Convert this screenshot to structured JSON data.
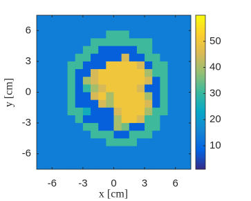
{
  "chart_data": {
    "type": "heatmap",
    "xlabel": "x [cm]",
    "ylabel": "y [cm]",
    "xlim": [
      -7.5,
      7.5
    ],
    "ylim": [
      -7.5,
      7.5
    ],
    "xticks": [
      -6,
      -3,
      0,
      3,
      6
    ],
    "yticks": [
      -6,
      -3,
      0,
      3,
      6
    ],
    "colormap": "parula",
    "clim": [
      1,
      60
    ],
    "colorbar_ticks": [
      10,
      20,
      30,
      40,
      50
    ],
    "z": [
      [
        14,
        14,
        14,
        14,
        14,
        14,
        14,
        14,
        14,
        14,
        14,
        14,
        14,
        14,
        14,
        14,
        14,
        14,
        14,
        14
      ],
      [
        14,
        14,
        14,
        14,
        14,
        14,
        14,
        14,
        14,
        14,
        14,
        14,
        14,
        14,
        14,
        14,
        14,
        14,
        14,
        14
      ],
      [
        14,
        14,
        14,
        14,
        14,
        14,
        14,
        14,
        14,
        31,
        31,
        31,
        14,
        14,
        14,
        14,
        14,
        14,
        14,
        14
      ],
      [
        14,
        14,
        14,
        14,
        14,
        14,
        14,
        31,
        31,
        31,
        31,
        31,
        31,
        31,
        31,
        14,
        14,
        14,
        14,
        14
      ],
      [
        14,
        14,
        14,
        14,
        14,
        14,
        31,
        31,
        8,
        8,
        8,
        8,
        8,
        31,
        31,
        14,
        14,
        14,
        14,
        14
      ],
      [
        14,
        14,
        14,
        14,
        14,
        31,
        31,
        8,
        8,
        8,
        8,
        45,
        8,
        8,
        31,
        31,
        14,
        14,
        14,
        14
      ],
      [
        14,
        14,
        14,
        14,
        31,
        31,
        8,
        8,
        8,
        50,
        50,
        50,
        50,
        45,
        8,
        31,
        31,
        14,
        14,
        14
      ],
      [
        14,
        14,
        14,
        14,
        31,
        8,
        8,
        45,
        50,
        50,
        50,
        50,
        50,
        50,
        40,
        31,
        31,
        14,
        14,
        14
      ],
      [
        14,
        14,
        14,
        14,
        31,
        8,
        40,
        45,
        50,
        50,
        50,
        50,
        50,
        50,
        45,
        8,
        31,
        14,
        14,
        14
      ],
      [
        14,
        14,
        14,
        14,
        31,
        8,
        30,
        40,
        45,
        50,
        50,
        50,
        50,
        45,
        8,
        8,
        31,
        14,
        14,
        14
      ],
      [
        14,
        14,
        14,
        14,
        31,
        8,
        8,
        45,
        50,
        40,
        50,
        50,
        50,
        50,
        40,
        8,
        31,
        14,
        14,
        14
      ],
      [
        14,
        14,
        14,
        14,
        31,
        8,
        8,
        8,
        45,
        40,
        50,
        50,
        50,
        50,
        45,
        8,
        31,
        14,
        14,
        14
      ],
      [
        14,
        14,
        14,
        14,
        31,
        31,
        25,
        8,
        8,
        8,
        45,
        50,
        50,
        50,
        40,
        31,
        31,
        14,
        14,
        14
      ],
      [
        14,
        14,
        14,
        14,
        14,
        31,
        8,
        8,
        8,
        8,
        40,
        50,
        50,
        45,
        31,
        31,
        14,
        14,
        14,
        14
      ],
      [
        14,
        14,
        14,
        14,
        14,
        14,
        31,
        31,
        8,
        8,
        40,
        35,
        8,
        8,
        31,
        31,
        14,
        14,
        14,
        14
      ],
      [
        14,
        14,
        14,
        14,
        14,
        14,
        14,
        31,
        31,
        31,
        8,
        8,
        31,
        31,
        31,
        14,
        14,
        14,
        14,
        14
      ],
      [
        14,
        14,
        14,
        14,
        14,
        14,
        14,
        14,
        14,
        31,
        31,
        31,
        31,
        14,
        14,
        14,
        14,
        14,
        14,
        14
      ],
      [
        14,
        14,
        14,
        14,
        14,
        14,
        14,
        14,
        14,
        14,
        14,
        14,
        14,
        14,
        14,
        14,
        14,
        14,
        14,
        14
      ],
      [
        14,
        14,
        14,
        14,
        14,
        14,
        14,
        14,
        14,
        14,
        14,
        14,
        14,
        14,
        14,
        14,
        14,
        14,
        14,
        14
      ],
      [
        14,
        14,
        14,
        14,
        14,
        14,
        14,
        14,
        14,
        14,
        14,
        14,
        14,
        14,
        14,
        14,
        14,
        14,
        14,
        14
      ]
    ]
  }
}
